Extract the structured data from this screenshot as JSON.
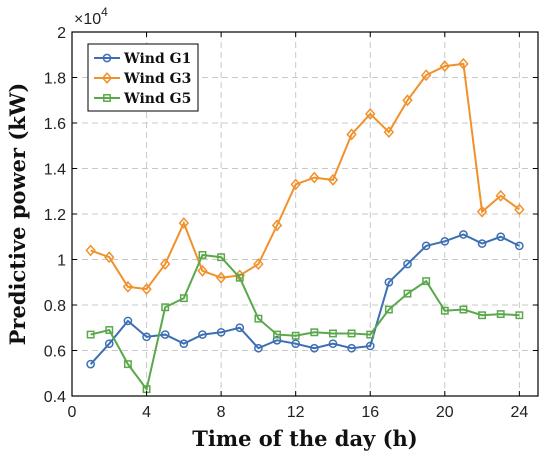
{
  "chart_data": {
    "type": "line",
    "xlabel": "Time of the day (h)",
    "ylabel": "Predictive power (kW)",
    "y_multiplier_label": "×10",
    "y_multiplier_exponent": "4",
    "xlim": [
      0,
      25
    ],
    "ylim": [
      0.4,
      2.0
    ],
    "x_ticks": [
      0,
      4,
      8,
      12,
      16,
      20,
      24
    ],
    "y_ticks": [
      0.4,
      0.6,
      0.8,
      1.0,
      1.2,
      1.4,
      1.6,
      1.8,
      2.0
    ],
    "y_tick_labels": [
      "0.4",
      "0.6",
      "0.8",
      "1",
      "1.2",
      "1.4",
      "1.6",
      "1.8",
      "2"
    ],
    "grid": true,
    "legend_position": "top-left",
    "x": [
      1,
      2,
      3,
      4,
      5,
      6,
      7,
      8,
      9,
      10,
      11,
      12,
      13,
      14,
      15,
      16,
      17,
      18,
      19,
      20,
      21,
      22,
      23,
      24
    ],
    "series": [
      {
        "name": "Wind G1",
        "color": "#3c6fb4",
        "marker": "circle",
        "values": [
          0.54,
          0.63,
          0.73,
          0.66,
          0.67,
          0.63,
          0.67,
          0.68,
          0.7,
          0.61,
          0.645,
          0.63,
          0.61,
          0.63,
          0.61,
          0.62,
          0.9,
          0.98,
          1.06,
          1.08,
          1.11,
          1.07,
          1.1,
          1.06
        ]
      },
      {
        "name": "Wind G3",
        "color": "#f0912c",
        "marker": "diamond",
        "values": [
          1.04,
          1.01,
          0.88,
          0.87,
          0.98,
          1.16,
          0.95,
          0.92,
          0.93,
          0.98,
          1.15,
          1.33,
          1.36,
          1.35,
          1.55,
          1.64,
          1.56,
          1.7,
          1.81,
          1.85,
          1.86,
          1.21,
          1.28,
          1.22
        ]
      },
      {
        "name": "Wind G5",
        "color": "#5aa84b",
        "marker": "square",
        "values": [
          0.67,
          0.69,
          0.54,
          0.43,
          0.79,
          0.83,
          1.02,
          1.01,
          0.92,
          0.74,
          0.67,
          0.665,
          0.68,
          0.675,
          0.675,
          0.67,
          0.78,
          0.85,
          0.905,
          0.775,
          0.78,
          0.755,
          0.76,
          0.755
        ]
      }
    ]
  }
}
